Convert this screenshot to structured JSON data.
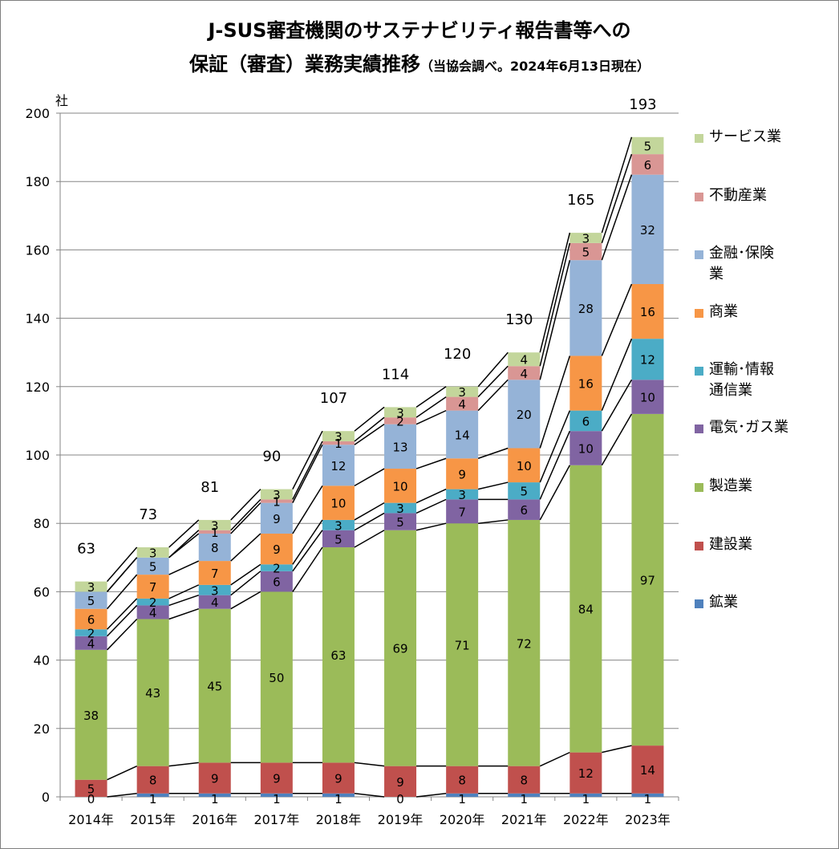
{
  "title_line1": "J-SUS審査機関のサステナビリティ報告書等への",
  "title_line2_main": "保証（審査）業務実績推移",
  "title_line2_sub": "（当協会調べ。2024年6月13日現在）",
  "chart_data": {
    "type": "bar",
    "stacked": true,
    "ylabel": "社",
    "ylim": [
      0,
      200
    ],
    "yticks": [
      0,
      20,
      40,
      60,
      80,
      100,
      120,
      140,
      160,
      180,
      200
    ],
    "grid": true,
    "legend_position": "right",
    "categories": [
      "2014年",
      "2015年",
      "2016年",
      "2017年",
      "2018年",
      "2019年",
      "2020年",
      "2021年",
      "2022年",
      "2023年"
    ],
    "totals": [
      63,
      73,
      81,
      90,
      107,
      114,
      120,
      130,
      165,
      193
    ],
    "series": [
      {
        "name": "鉱業",
        "color": "#4F81BD",
        "values": [
          0,
          1,
          1,
          1,
          1,
          0,
          1,
          1,
          1,
          1
        ]
      },
      {
        "name": "建設業",
        "color": "#C0504D",
        "values": [
          5,
          8,
          9,
          9,
          9,
          9,
          8,
          8,
          12,
          14
        ]
      },
      {
        "name": "製造業",
        "color": "#9BBB59",
        "values": [
          38,
          43,
          45,
          50,
          63,
          69,
          71,
          72,
          84,
          97
        ]
      },
      {
        "name": "電気･ガス業",
        "color": "#8064A2",
        "values": [
          4,
          4,
          4,
          6,
          5,
          5,
          7,
          6,
          10,
          10
        ]
      },
      {
        "name": "運輸･情報通信業",
        "color": "#4BACC6",
        "values": [
          2,
          2,
          3,
          2,
          3,
          3,
          3,
          5,
          6,
          12
        ]
      },
      {
        "name": "商業",
        "color": "#F79646",
        "values": [
          6,
          7,
          7,
          9,
          10,
          10,
          9,
          10,
          16,
          16
        ]
      },
      {
        "name": "金融･保険業",
        "color": "#95B3D7",
        "values": [
          5,
          5,
          8,
          9,
          12,
          13,
          14,
          20,
          28,
          32
        ]
      },
      {
        "name": "不動産業",
        "color": "#D99694",
        "values": [
          0,
          0,
          1,
          1,
          1,
          2,
          4,
          4,
          5,
          6
        ]
      },
      {
        "name": "サービス業",
        "color": "#C3D69B",
        "values": [
          3,
          3,
          3,
          3,
          3,
          3,
          3,
          4,
          3,
          5
        ]
      }
    ],
    "legend": [
      {
        "lines": [
          "サービス業"
        ],
        "color": "#C3D69B"
      },
      {
        "lines": [
          "不動産業"
        ],
        "color": "#D99694"
      },
      {
        "lines": [
          "金融･保険",
          "業"
        ],
        "color": "#95B3D7"
      },
      {
        "lines": [
          "商業"
        ],
        "color": "#F79646"
      },
      {
        "lines": [
          "運輸･情報",
          "通信業"
        ],
        "color": "#4BACC6"
      },
      {
        "lines": [
          "電気･ガス業"
        ],
        "color": "#8064A2"
      },
      {
        "lines": [
          "製造業"
        ],
        "color": "#9BBB59"
      },
      {
        "lines": [
          "建設業"
        ],
        "color": "#C0504D"
      },
      {
        "lines": [
          "鉱業"
        ],
        "color": "#4F81BD"
      }
    ]
  }
}
